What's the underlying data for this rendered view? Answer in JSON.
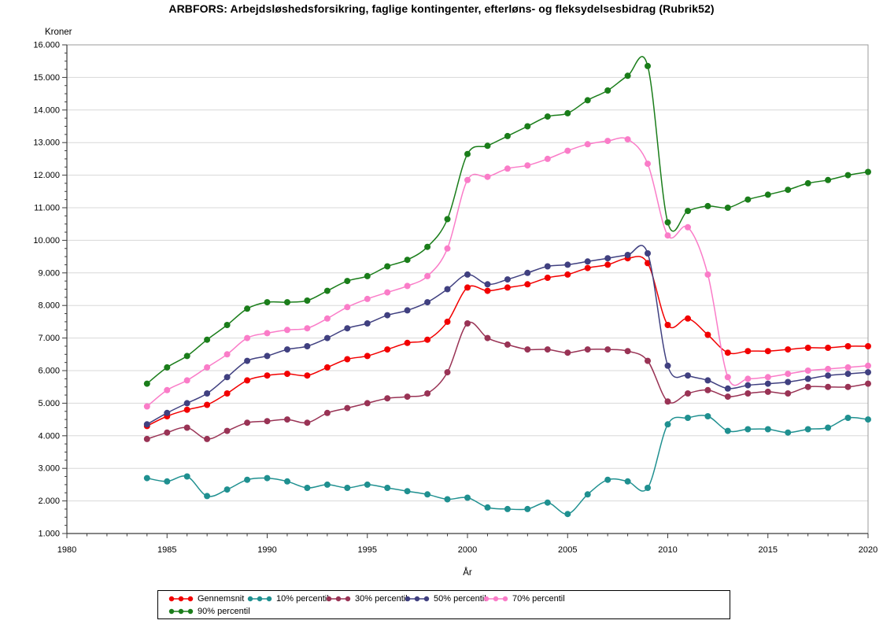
{
  "title": "ARBFORS: Arbejdsløshedsforsikring, faglige kontingenter, efterløns- og fleksydelsesbidrag (Rubrik52)",
  "y_axis": {
    "label": "Kroner",
    "tick_labels": [
      "16.000",
      "15.000",
      "14.000",
      "13.000",
      "12.000",
      "11.000",
      "10.000",
      "9.000",
      "8.000",
      "7.000",
      "6.000",
      "5.000",
      "4.000",
      "3.000",
      "2.000",
      "1.000"
    ]
  },
  "x_axis": {
    "label": "År",
    "tick_labels": [
      "1980",
      "1985",
      "1990",
      "1995",
      "2000",
      "2005",
      "2010",
      "2015",
      "2020"
    ]
  },
  "legend": [
    {
      "label": "Gennemsnit",
      "color": "#f20000"
    },
    {
      "label": "10% percentil",
      "color": "#1f9090"
    },
    {
      "label": "30% percentil",
      "color": "#993355"
    },
    {
      "label": "50% percentil",
      "color": "#404080"
    },
    {
      "label": "70% percentil",
      "color": "#fa7cc8"
    },
    {
      "label": "90% percentil",
      "color": "#1a7d1a"
    }
  ],
  "colors": {
    "grid": "#d8d8d8",
    "frame": "#9b9b9b",
    "axis": "#3c3c3c",
    "text": "#000000"
  },
  "chart_data": {
    "type": "line",
    "title": "ARBFORS: Arbejdsløshedsforsikring, faglige kontingenter, efterløns- og fleksydelsesbidrag (Rubrik52)",
    "xlabel": "År",
    "ylabel": "Kroner",
    "xlim": [
      1980,
      2020
    ],
    "ylim": [
      1000,
      16000
    ],
    "y_major_step": 1000,
    "x_major_step": 5,
    "grid": true,
    "legend_position": "bottom",
    "marker": "dot",
    "interpolation": "smooth-spline",
    "x": [
      1984,
      1985,
      1986,
      1987,
      1988,
      1989,
      1990,
      1991,
      1992,
      1993,
      1994,
      1995,
      1996,
      1997,
      1998,
      1999,
      2000,
      2001,
      2002,
      2003,
      2004,
      2005,
      2006,
      2007,
      2008,
      2009,
      2010,
      2011,
      2012,
      2013,
      2014,
      2015,
      2016,
      2017,
      2018,
      2019,
      2020
    ],
    "series": [
      {
        "name": "Gennemsnit",
        "color": "#f20000",
        "values": [
          4300,
          4600,
          4800,
          4950,
          5300,
          5700,
          5850,
          5900,
          5850,
          6100,
          6350,
          6450,
          6650,
          6850,
          6950,
          7500,
          8550,
          8450,
          8550,
          8650,
          8850,
          8950,
          9150,
          9250,
          9450,
          9300,
          7400,
          7600,
          7100,
          6550,
          6600,
          6600,
          6650,
          6700,
          6700,
          6750,
          6750
        ]
      },
      {
        "name": "10% percentil",
        "color": "#1f9090",
        "values": [
          2700,
          2600,
          2750,
          2150,
          2350,
          2650,
          2700,
          2600,
          2400,
          2500,
          2400,
          2500,
          2400,
          2300,
          2200,
          2050,
          2100,
          1800,
          1750,
          1750,
          1950,
          1600,
          2200,
          2650,
          2600,
          2400,
          4350,
          4550,
          4600,
          4150,
          4200,
          4200,
          4100,
          4200,
          4250,
          4550,
          4500
        ]
      },
      {
        "name": "30% percentil",
        "color": "#993355",
        "values": [
          3900,
          4100,
          4250,
          3900,
          4150,
          4400,
          4450,
          4500,
          4400,
          4700,
          4850,
          5000,
          5150,
          5200,
          5300,
          5950,
          7450,
          7000,
          6800,
          6650,
          6650,
          6550,
          6650,
          6650,
          6600,
          6300,
          5050,
          5300,
          5400,
          5200,
          5300,
          5350,
          5300,
          5500,
          5500,
          5500,
          5600
        ]
      },
      {
        "name": "50% percentil",
        "color": "#404080",
        "values": [
          4350,
          4700,
          5000,
          5300,
          5800,
          6300,
          6450,
          6650,
          6750,
          7000,
          7300,
          7450,
          7700,
          7850,
          8100,
          8500,
          8950,
          8650,
          8800,
          9000,
          9200,
          9250,
          9350,
          9450,
          9550,
          9600,
          6150,
          5850,
          5700,
          5450,
          5550,
          5600,
          5650,
          5750,
          5850,
          5900,
          5950
        ]
      },
      {
        "name": "70% percentil",
        "color": "#fa7cc8",
        "values": [
          4900,
          5400,
          5700,
          6100,
          6500,
          7000,
          7150,
          7250,
          7300,
          7600,
          7950,
          8200,
          8400,
          8600,
          8900,
          9750,
          11850,
          11950,
          12200,
          12300,
          12500,
          12750,
          12950,
          13050,
          13100,
          12350,
          10150,
          10400,
          8950,
          5800,
          5750,
          5800,
          5900,
          6000,
          6050,
          6100,
          6150
        ]
      },
      {
        "name": "90% percentil",
        "color": "#1a7d1a",
        "values": [
          5600,
          6100,
          6450,
          6950,
          7400,
          7900,
          8100,
          8100,
          8150,
          8450,
          8750,
          8900,
          9200,
          9400,
          9800,
          10650,
          12650,
          12900,
          13200,
          13500,
          13800,
          13900,
          14300,
          14600,
          15050,
          15350,
          10550,
          10900,
          11050,
          11000,
          11250,
          11400,
          11550,
          11750,
          11850,
          12000,
          12100
        ]
      }
    ]
  }
}
